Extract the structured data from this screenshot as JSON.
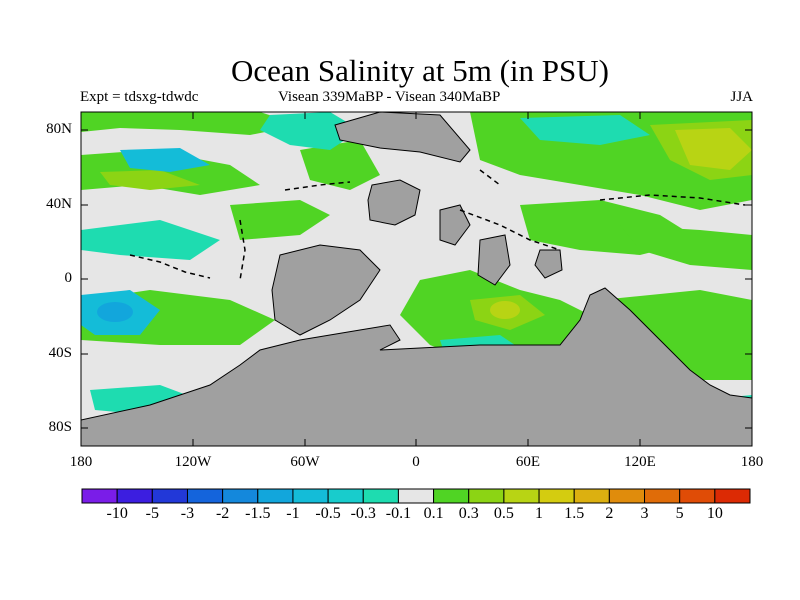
{
  "title": "Ocean Salinity at 5m (in PSU)",
  "subtitle_left": "Expt = tdsxg-tdwdc",
  "subtitle_center": "Visean 339MaBP - Visean   340MaBP",
  "subtitle_right": "JJA",
  "lat_ticks": [
    "80N",
    "40N",
    "0",
    "40S",
    "80S"
  ],
  "lon_ticks": [
    "180",
    "120W",
    "60W",
    "0",
    "60E",
    "120E",
    "180"
  ],
  "colorbar": {
    "labels": [
      "-10",
      "-5",
      "-3",
      "-2",
      "-1.5",
      "-1",
      "-0.5",
      "-0.3",
      "-0.1",
      "0.1",
      "0.3",
      "0.5",
      "1",
      "1.5",
      "2",
      "3",
      "5",
      "10"
    ],
    "colors": [
      "#7a1de8",
      "#3c1ee0",
      "#2238d8",
      "#1464dc",
      "#1488dc",
      "#12a6dc",
      "#14bcd8",
      "#18cccc",
      "#1edcb0",
      "#e6e6e6",
      "#50d424",
      "#8cd414",
      "#b8d414",
      "#d4cc10",
      "#dcb010",
      "#e08c0c",
      "#e06c08",
      "#e04c06",
      "#dc2a04"
    ]
  },
  "map": {
    "land_color": "#a0a0a0",
    "neutral_color": "#e6e6e6"
  }
}
